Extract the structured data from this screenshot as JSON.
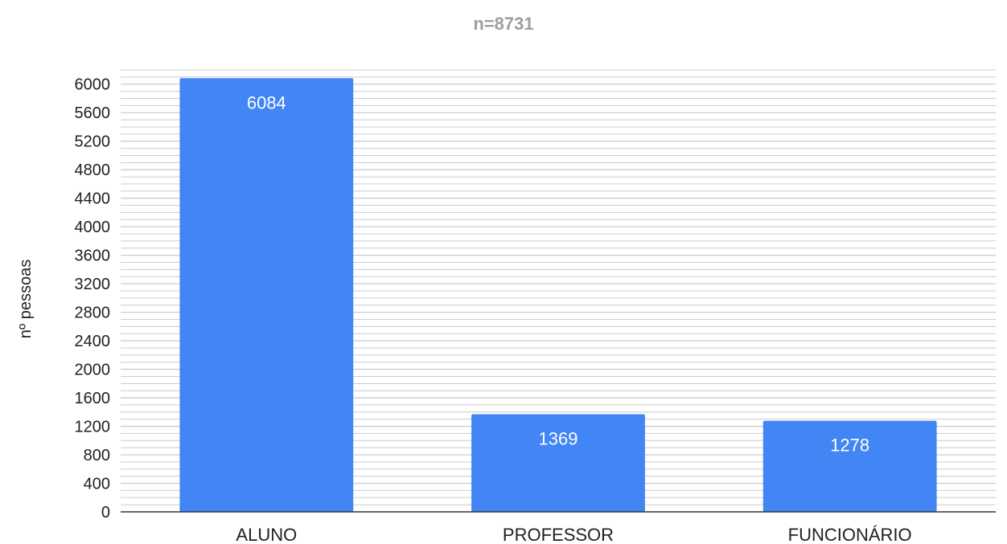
{
  "chart_data": {
    "type": "bar",
    "title": "n=8731",
    "xlabel": "",
    "ylabel": "nº pessoas",
    "categories": [
      "ALUNO",
      "PROFESSOR",
      "FUNCIONÁRIO"
    ],
    "values": [
      6084,
      1369,
      1278
    ],
    "data_labels": [
      "6084",
      "1369",
      "1278"
    ],
    "ylim": [
      0,
      6200
    ],
    "yticks": [
      0,
      400,
      800,
      1200,
      1600,
      2000,
      2400,
      2800,
      3200,
      3600,
      4000,
      4400,
      4800,
      5200,
      5600,
      6000
    ],
    "ytick_labels": [
      "0",
      "400",
      "800",
      "1200",
      "1600",
      "2000",
      "2400",
      "2800",
      "3200",
      "3600",
      "4000",
      "4400",
      "4800",
      "5200",
      "5600",
      "6000"
    ],
    "minor_grid_step": 100,
    "grid": true,
    "legend": "none",
    "colors": {
      "bar": "#4285f4",
      "title": "#9e9e9e",
      "text": "#212121",
      "data_label": "#ffffff",
      "grid": "#cccccc",
      "axis": "#333333"
    }
  }
}
